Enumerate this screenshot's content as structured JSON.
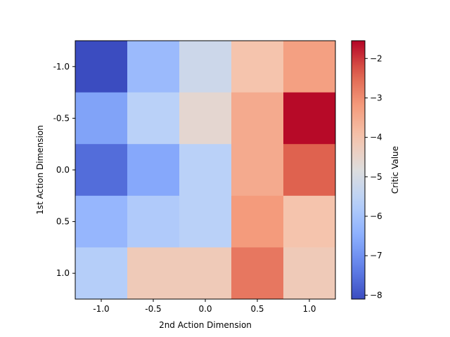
{
  "chart_data": {
    "type": "heatmap",
    "xlabel": "2nd Action Dimension",
    "ylabel": "1st Action Dimension",
    "x_categories": [
      "-1.0",
      "-0.5",
      "0.0",
      "0.5",
      "1.0"
    ],
    "y_categories": [
      "-1.0",
      "-0.5",
      "0.0",
      "0.5",
      "1.0"
    ],
    "values": [
      [
        -8.1,
        -6.2,
        -5.2,
        -4.0,
        -3.3
      ],
      [
        -6.7,
        -5.6,
        -4.6,
        -3.5,
        -1.6
      ],
      [
        -7.6,
        -6.6,
        -5.6,
        -3.5,
        -2.4
      ],
      [
        -6.3,
        -5.8,
        -5.6,
        -3.2,
        -4.0
      ],
      [
        -5.7,
        -4.2,
        -4.2,
        -2.7,
        -4.2
      ]
    ],
    "colormap": "coolwarm",
    "vmin": -8.1,
    "vmax": -1.55,
    "colorbar": {
      "label": "Critic Value",
      "ticks": [
        -8,
        -7,
        -6,
        -5,
        -4,
        -3,
        -2
      ]
    }
  }
}
